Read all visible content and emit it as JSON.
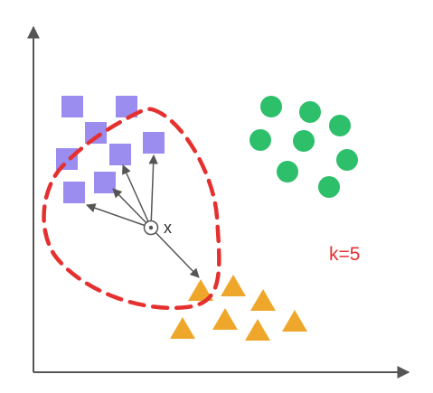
{
  "labels": {
    "query_point": "x",
    "k_value": "k=5"
  },
  "colors": {
    "square": "#9b8cf0",
    "circle": "#2dbf6a",
    "triangle": "#eea72a",
    "boundary": "#e53030",
    "k_text": "#e53030",
    "axis": "#555555",
    "arrow": "#555555"
  },
  "classes": {
    "squares": 9,
    "circles": 9,
    "triangles": 8
  },
  "k": 5
}
